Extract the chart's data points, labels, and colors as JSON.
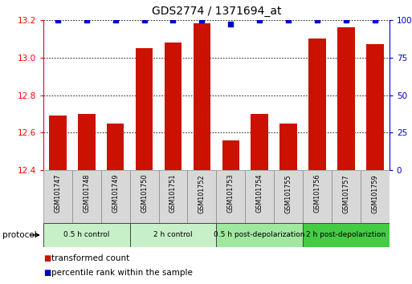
{
  "title": "GDS2774 / 1371694_at",
  "samples": [
    "GSM101747",
    "GSM101748",
    "GSM101749",
    "GSM101750",
    "GSM101751",
    "GSM101752",
    "GSM101753",
    "GSM101754",
    "GSM101755",
    "GSM101756",
    "GSM101757",
    "GSM101759"
  ],
  "red_values": [
    12.69,
    12.7,
    12.65,
    13.05,
    13.08,
    13.18,
    12.56,
    12.7,
    12.65,
    13.1,
    13.16,
    13.07
  ],
  "blue_values": [
    100,
    100,
    100,
    100,
    100,
    100,
    97,
    100,
    100,
    100,
    100,
    100
  ],
  "ylim_left": [
    12.4,
    13.2
  ],
  "ylim_right": [
    0,
    100
  ],
  "yticks_left": [
    12.4,
    12.6,
    12.8,
    13.0,
    13.2
  ],
  "yticks_right": [
    0,
    25,
    50,
    75,
    100
  ],
  "ytick_labels_right": [
    "0",
    "25",
    "50",
    "75",
    "100%"
  ],
  "groups": [
    {
      "label": "0.5 h control",
      "start": 0,
      "end": 3,
      "color": "#c8f0c8"
    },
    {
      "label": "2 h control",
      "start": 3,
      "end": 6,
      "color": "#c8f0c8"
    },
    {
      "label": "0.5 h post-depolarization",
      "start": 6,
      "end": 9,
      "color": "#a0e8a0"
    },
    {
      "label": "2 h post-depolariztion",
      "start": 9,
      "end": 12,
      "color": "#44cc44"
    }
  ],
  "bar_color": "#cc1100",
  "dot_color": "#0000cc",
  "bg_color": "#ffffff",
  "sample_bg": "#d8d8d8",
  "protocol_label": "protocol",
  "legend_red": "transformed count",
  "legend_blue": "percentile rank within the sample"
}
